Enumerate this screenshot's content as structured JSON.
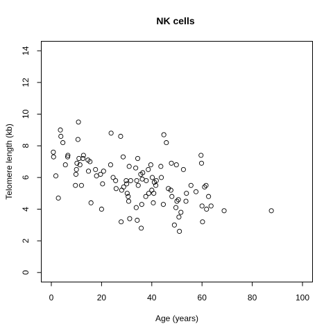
{
  "chart_data": {
    "type": "scatter",
    "title": "NK cells",
    "xlabel": "Age (years)",
    "ylabel": "Telomere length (kb)",
    "xlim": [
      -4,
      104
    ],
    "ylim": [
      -0.6,
      14.6
    ],
    "xticks": [
      "0",
      "20",
      "40",
      "60",
      "80",
      "100"
    ],
    "yticks": [
      "0",
      "2",
      "4",
      "6",
      "8",
      "10",
      "12",
      "14"
    ],
    "grid": false,
    "points": [
      [
        0.8,
        7.6
      ],
      [
        0.9,
        7.3
      ],
      [
        1.8,
        6.1
      ],
      [
        2.8,
        4.7
      ],
      [
        3.6,
        9.0
      ],
      [
        3.8,
        8.6
      ],
      [
        4.6,
        8.2
      ],
      [
        5.6,
        6.8
      ],
      [
        6.5,
        7.3
      ],
      [
        6.6,
        7.4
      ],
      [
        9.6,
        5.5
      ],
      [
        9.8,
        6.2
      ],
      [
        10.0,
        6.5
      ],
      [
        10.2,
        6.9
      ],
      [
        10.6,
        8.4
      ],
      [
        10.8,
        9.5
      ],
      [
        11.0,
        7.2
      ],
      [
        11.4,
        6.8
      ],
      [
        12.0,
        5.5
      ],
      [
        12.6,
        7.2
      ],
      [
        12.8,
        7.4
      ],
      [
        14.6,
        7.1
      ],
      [
        14.8,
        6.4
      ],
      [
        15.4,
        7.0
      ],
      [
        15.8,
        4.4
      ],
      [
        17.6,
        6.5
      ],
      [
        18.0,
        6.1
      ],
      [
        19.6,
        6.2
      ],
      [
        20.0,
        4.0
      ],
      [
        20.4,
        5.6
      ],
      [
        20.8,
        6.4
      ],
      [
        23.6,
        6.8
      ],
      [
        23.8,
        8.8
      ],
      [
        24.6,
        6.0
      ],
      [
        25.6,
        5.8
      ],
      [
        25.8,
        5.3
      ],
      [
        27.6,
        8.6
      ],
      [
        27.8,
        3.2
      ],
      [
        28.0,
        5.2
      ],
      [
        28.6,
        7.3
      ],
      [
        28.8,
        5.4
      ],
      [
        29.8,
        5.8
      ],
      [
        30.0,
        5.6
      ],
      [
        30.2,
        5.0
      ],
      [
        30.6,
        4.8
      ],
      [
        30.8,
        4.5
      ],
      [
        31.0,
        6.7
      ],
      [
        31.2,
        3.4
      ],
      [
        31.6,
        5.8
      ],
      [
        33.6,
        6.6
      ],
      [
        33.8,
        4.1
      ],
      [
        34.0,
        5.8
      ],
      [
        34.2,
        3.3
      ],
      [
        34.4,
        7.2
      ],
      [
        34.6,
        5.5
      ],
      [
        35.6,
        6.2
      ],
      [
        35.8,
        2.8
      ],
      [
        36.0,
        4.3
      ],
      [
        36.2,
        5.9
      ],
      [
        36.4,
        6.3
      ],
      [
        37.6,
        4.8
      ],
      [
        37.8,
        5.8
      ],
      [
        38.6,
        6.5
      ],
      [
        38.8,
        5.0
      ],
      [
        39.6,
        6.8
      ],
      [
        40.0,
        5.2
      ],
      [
        40.2,
        6.0
      ],
      [
        40.6,
        4.4
      ],
      [
        40.8,
        5.0
      ],
      [
        41.0,
        5.7
      ],
      [
        41.6,
        5.5
      ],
      [
        41.8,
        5.8
      ],
      [
        43.6,
        6.7
      ],
      [
        43.8,
        6.0
      ],
      [
        44.6,
        4.3
      ],
      [
        44.8,
        8.7
      ],
      [
        45.8,
        8.2
      ],
      [
        46.6,
        5.3
      ],
      [
        47.6,
        5.2
      ],
      [
        47.8,
        6.9
      ],
      [
        48.0,
        4.8
      ],
      [
        49.0,
        3.0
      ],
      [
        49.6,
        4.1
      ],
      [
        49.8,
        6.8
      ],
      [
        50.0,
        4.5
      ],
      [
        50.6,
        4.6
      ],
      [
        50.8,
        3.5
      ],
      [
        51.0,
        2.6
      ],
      [
        51.6,
        3.8
      ],
      [
        52.6,
        6.5
      ],
      [
        53.6,
        4.5
      ],
      [
        53.8,
        5.0
      ],
      [
        55.6,
        5.5
      ],
      [
        57.6,
        5.1
      ],
      [
        59.6,
        7.4
      ],
      [
        59.8,
        6.9
      ],
      [
        60.0,
        4.2
      ],
      [
        60.2,
        3.2
      ],
      [
        61.0,
        5.4
      ],
      [
        61.6,
        5.5
      ],
      [
        61.8,
        4.0
      ],
      [
        62.6,
        4.8
      ],
      [
        63.6,
        4.2
      ],
      [
        68.8,
        3.9
      ],
      [
        87.6,
        3.9
      ]
    ]
  }
}
